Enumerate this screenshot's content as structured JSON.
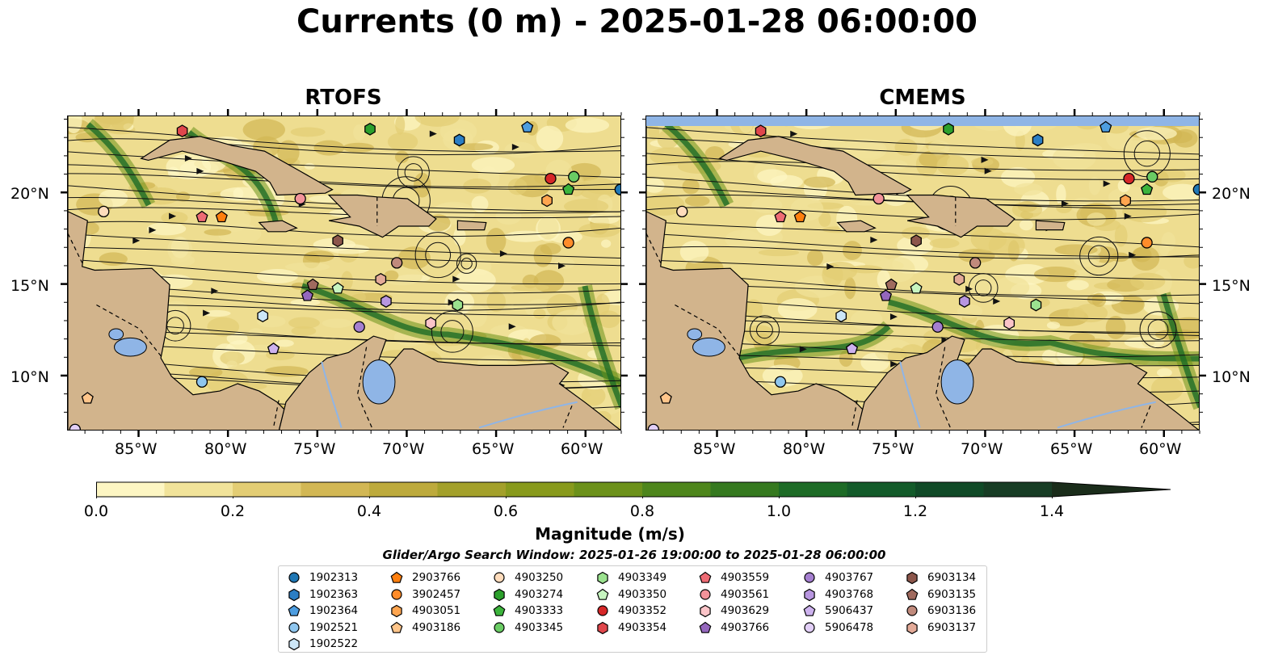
{
  "title": "Currents (0 m) - 2025-01-28 06:00:00",
  "panels": [
    {
      "title": "RTOFS"
    },
    {
      "title": "CMEMS"
    }
  ],
  "axes": {
    "lon_ticks": [
      "85°W",
      "80°W",
      "75°W",
      "70°W",
      "65°W",
      "60°W"
    ],
    "lat_ticks": [
      "20°N",
      "15°N",
      "10°N"
    ],
    "lon_range": [
      -89,
      -58
    ],
    "lat_range": [
      7,
      24.2
    ]
  },
  "colorbar": {
    "title": "Magnitude (m/s)",
    "ticks": [
      "0.0",
      "0.2",
      "0.4",
      "0.6",
      "0.8",
      "1.0",
      "1.2",
      "1.4"
    ],
    "range": [
      0,
      1.5
    ],
    "extend": "max",
    "colors": [
      "#fdf6c3",
      "#f1e39a",
      "#e3cd74",
      "#d2b754",
      "#bdaa3c",
      "#a3a02a",
      "#889a1c",
      "#6c911a",
      "#4e861c",
      "#35791f",
      "#1d6b26",
      "#135b2a",
      "#104a27",
      "#173c24",
      "#1a2c1a"
    ]
  },
  "map_colors": {
    "land": "#d2b48c",
    "water": "#8fb5e6",
    "coast": "#000000"
  },
  "search_window": "Glider/Argo Search Window: 2025-01-26 19:00:00 to 2025-01-28 06:00:00",
  "legend": [
    {
      "id": "1902313",
      "marker": "circle",
      "color": "#1f77b4"
    },
    {
      "id": "1902363",
      "marker": "hexagon",
      "color": "#2b7ec4"
    },
    {
      "id": "1902364",
      "marker": "pentagon",
      "color": "#4d9de0"
    },
    {
      "id": "1902521",
      "marker": "circle",
      "color": "#8fc6ee"
    },
    {
      "id": "1902522",
      "marker": "hexagon",
      "color": "#cce6f7"
    },
    {
      "id": "2903766",
      "marker": "pentagon",
      "color": "#ff7f0e"
    },
    {
      "id": "3902457",
      "marker": "circle",
      "color": "#ff8c2a"
    },
    {
      "id": "4903051",
      "marker": "hexagon",
      "color": "#ffa54f"
    },
    {
      "id": "4903186",
      "marker": "pentagon",
      "color": "#ffc58a"
    },
    {
      "id": "4903250",
      "marker": "circle",
      "color": "#ffdcbc"
    },
    {
      "id": "4903274",
      "marker": "hexagon",
      "color": "#2ca02c"
    },
    {
      "id": "4903333",
      "marker": "pentagon",
      "color": "#3cb43c"
    },
    {
      "id": "4903345",
      "marker": "circle",
      "color": "#6acc64"
    },
    {
      "id": "4903349",
      "marker": "hexagon",
      "color": "#9be28f"
    },
    {
      "id": "4903350",
      "marker": "pentagon",
      "color": "#c7f5c0"
    },
    {
      "id": "4903352",
      "marker": "circle",
      "color": "#d62728"
    },
    {
      "id": "4903354",
      "marker": "hexagon",
      "color": "#e0474c"
    },
    {
      "id": "4903559",
      "marker": "pentagon",
      "color": "#ee6b74"
    },
    {
      "id": "4903561",
      "marker": "circle",
      "color": "#f2939a"
    },
    {
      "id": "4903629",
      "marker": "hexagon",
      "color": "#fbc4c8"
    },
    {
      "id": "4903766",
      "marker": "pentagon",
      "color": "#9467bd"
    },
    {
      "id": "4903767",
      "marker": "circle",
      "color": "#a57fd0"
    },
    {
      "id": "4903768",
      "marker": "hexagon",
      "color": "#b896e0"
    },
    {
      "id": "5906437",
      "marker": "pentagon",
      "color": "#cdb2ee"
    },
    {
      "id": "5906478",
      "marker": "circle",
      "color": "#e2cff7"
    },
    {
      "id": "6903134",
      "marker": "hexagon",
      "color": "#8c564b"
    },
    {
      "id": "6903135",
      "marker": "pentagon",
      "color": "#a06a5e"
    },
    {
      "id": "6903136",
      "marker": "circle",
      "color": "#c08a7c"
    },
    {
      "id": "6903137",
      "marker": "hexagon",
      "color": "#e3aa98"
    }
  ],
  "floats": [
    {
      "id": "4903354",
      "marker": "hexagon",
      "color": "#e0474c",
      "lon": -82.6,
      "lat": 23.4
    },
    {
      "id": "4903274",
      "marker": "hexagon",
      "color": "#2ca02c",
      "lon": -72.1,
      "lat": 23.5
    },
    {
      "id": "1902364",
      "marker": "pentagon",
      "color": "#4d9de0",
      "lon": -63.3,
      "lat": 23.6
    },
    {
      "id": "1902363",
      "marker": "hexagon",
      "color": "#2b7ec4",
      "lon": -67.1,
      "lat": 22.9
    },
    {
      "id": "4903352",
      "marker": "circle",
      "color": "#d62728",
      "lon": -62.0,
      "lat": 20.8
    },
    {
      "id": "4903345",
      "marker": "circle",
      "color": "#6acc64",
      "lon": -60.7,
      "lat": 20.9
    },
    {
      "id": "4903333",
      "marker": "pentagon",
      "color": "#3cb43c",
      "lon": -61.0,
      "lat": 20.2
    },
    {
      "id": "1902313",
      "marker": "circle",
      "color": "#1f77b4",
      "lon": -58.1,
      "lat": 20.2
    },
    {
      "id": "4903051",
      "marker": "hexagon",
      "color": "#ffa54f",
      "lon": -62.2,
      "lat": 19.6
    },
    {
      "id": "4903250",
      "marker": "circle",
      "color": "#ffdcbc",
      "lon": -87.0,
      "lat": 19.0
    },
    {
      "id": "4903559",
      "marker": "pentagon",
      "color": "#ee6b74",
      "lon": -81.5,
      "lat": 18.7
    },
    {
      "id": "2903766",
      "marker": "pentagon",
      "color": "#ff7f0e",
      "lon": -80.4,
      "lat": 18.7
    },
    {
      "id": "4903561",
      "marker": "circle",
      "color": "#f2939a",
      "lon": -76.0,
      "lat": 19.7
    },
    {
      "id": "3902457",
      "marker": "circle",
      "color": "#ff8c2a",
      "lon": -61.0,
      "lat": 17.3
    },
    {
      "id": "6903134",
      "marker": "hexagon",
      "color": "#8c564b",
      "lon": -73.9,
      "lat": 17.4
    },
    {
      "id": "6903136",
      "marker": "circle",
      "color": "#c08a7c",
      "lon": -70.6,
      "lat": 16.2
    },
    {
      "id": "6903137",
      "marker": "hexagon",
      "color": "#e3aa98",
      "lon": -71.5,
      "lat": 15.3
    },
    {
      "id": "6903135",
      "marker": "pentagon",
      "color": "#a06a5e",
      "lon": -75.3,
      "lat": 15.0
    },
    {
      "id": "4903350",
      "marker": "pentagon",
      "color": "#c7f5c0",
      "lon": -73.9,
      "lat": 14.8
    },
    {
      "id": "4903766",
      "marker": "pentagon",
      "color": "#9467bd",
      "lon": -75.6,
      "lat": 14.4
    },
    {
      "id": "4903768",
      "marker": "hexagon",
      "color": "#b896e0",
      "lon": -71.2,
      "lat": 14.1
    },
    {
      "id": "4903349",
      "marker": "hexagon",
      "color": "#9be28f",
      "lon": -67.2,
      "lat": 13.9
    },
    {
      "id": "1902522",
      "marker": "hexagon",
      "color": "#cce6f7",
      "lon": -78.1,
      "lat": 13.3
    },
    {
      "id": "4903629",
      "marker": "hexagon",
      "color": "#fbc4c8",
      "lon": -68.7,
      "lat": 12.9
    },
    {
      "id": "4903767",
      "marker": "circle",
      "color": "#a57fd0",
      "lon": -72.7,
      "lat": 12.7
    },
    {
      "id": "5906437",
      "marker": "pentagon",
      "color": "#cdb2ee",
      "lon": -77.5,
      "lat": 11.5
    },
    {
      "id": "1902521",
      "marker": "circle",
      "color": "#8fc6ee",
      "lon": -81.5,
      "lat": 9.7
    },
    {
      "id": "4903186",
      "marker": "pentagon",
      "color": "#ffc58a",
      "lon": -87.9,
      "lat": 8.8
    },
    {
      "id": "5906478",
      "marker": "circle",
      "color": "#e2cff7",
      "lon": -88.6,
      "lat": 7.1
    }
  ]
}
